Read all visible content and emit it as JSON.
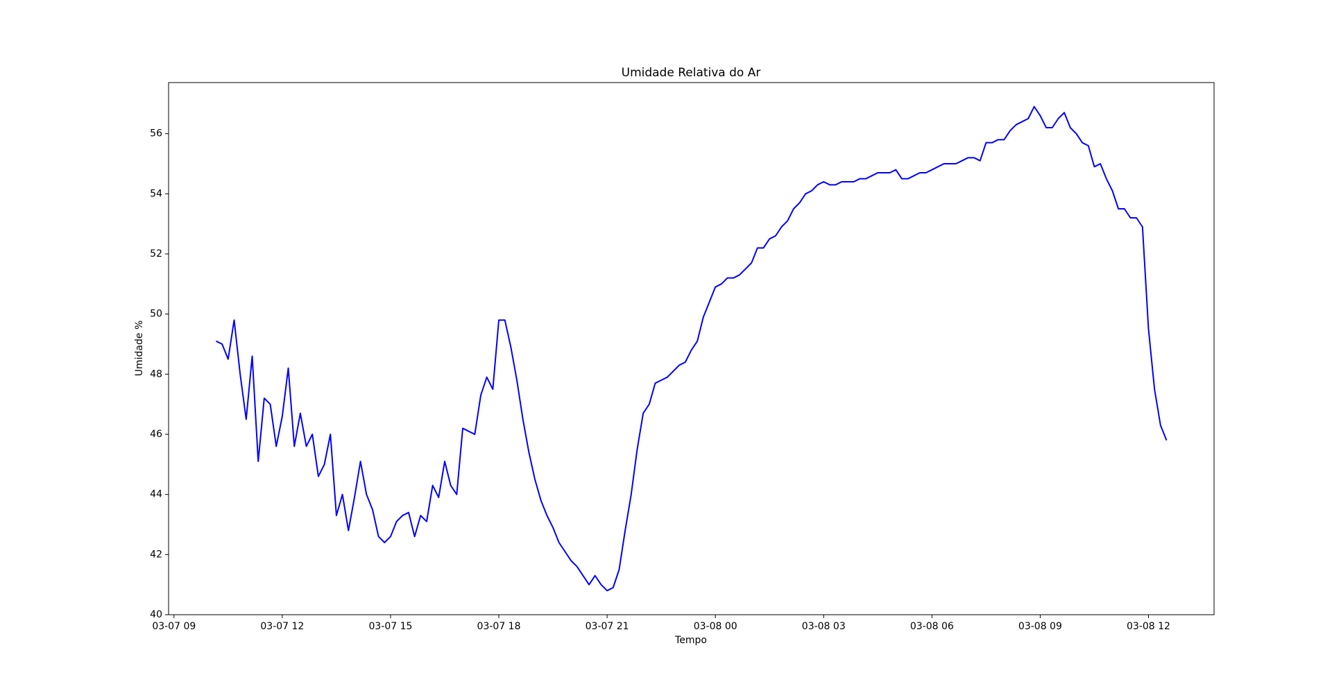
{
  "chart_data": {
    "type": "line",
    "title": "Umidade Relativa do Ar",
    "x_label": "Tempo",
    "y_label": "Umidade %",
    "color": "#0000ff",
    "x": [
      "03-07 10:10",
      "03-07 10:20",
      "03-07 10:30",
      "03-07 10:40",
      "03-07 10:50",
      "03-07 11:00",
      "03-07 11:10",
      "03-07 11:20",
      "03-07 11:30",
      "03-07 11:40",
      "03-07 11:50",
      "03-07 12:00",
      "03-07 12:10",
      "03-07 12:20",
      "03-07 12:30",
      "03-07 12:40",
      "03-07 12:50",
      "03-07 13:00",
      "03-07 13:10",
      "03-07 13:20",
      "03-07 13:30",
      "03-07 13:40",
      "03-07 13:50",
      "03-07 14:00",
      "03-07 14:10",
      "03-07 14:20",
      "03-07 14:30",
      "03-07 14:40",
      "03-07 14:50",
      "03-07 15:00",
      "03-07 15:10",
      "03-07 15:20",
      "03-07 15:30",
      "03-07 15:40",
      "03-07 15:50",
      "03-07 16:00",
      "03-07 16:10",
      "03-07 16:20",
      "03-07 16:30",
      "03-07 16:40",
      "03-07 16:50",
      "03-07 17:00",
      "03-07 17:10",
      "03-07 17:20",
      "03-07 17:30",
      "03-07 17:40",
      "03-07 17:50",
      "03-07 18:00",
      "03-07 18:10",
      "03-07 18:20",
      "03-07 18:30",
      "03-07 18:40",
      "03-07 18:50",
      "03-07 19:00",
      "03-07 19:10",
      "03-07 19:20",
      "03-07 19:30",
      "03-07 19:40",
      "03-07 19:50",
      "03-07 20:00",
      "03-07 20:10",
      "03-07 20:20",
      "03-07 20:30",
      "03-07 20:40",
      "03-07 20:50",
      "03-07 21:00",
      "03-07 21:10",
      "03-07 21:20",
      "03-07 21:30",
      "03-07 21:40",
      "03-07 21:50",
      "03-07 22:00",
      "03-07 22:10",
      "03-07 22:20",
      "03-07 22:30",
      "03-07 22:40",
      "03-07 22:50",
      "03-07 23:00",
      "03-07 23:10",
      "03-07 23:20",
      "03-07 23:30",
      "03-07 23:40",
      "03-07 23:50",
      "03-08 00:00",
      "03-08 00:10",
      "03-08 00:20",
      "03-08 00:30",
      "03-08 00:40",
      "03-08 00:50",
      "03-08 01:00",
      "03-08 01:10",
      "03-08 01:20",
      "03-08 01:30",
      "03-08 01:40",
      "03-08 01:50",
      "03-08 02:00",
      "03-08 02:10",
      "03-08 02:20",
      "03-08 02:30",
      "03-08 02:40",
      "03-08 02:50",
      "03-08 03:00",
      "03-08 03:10",
      "03-08 03:20",
      "03-08 03:30",
      "03-08 03:40",
      "03-08 03:50",
      "03-08 04:00",
      "03-08 04:10",
      "03-08 04:20",
      "03-08 04:30",
      "03-08 04:40",
      "03-08 04:50",
      "03-08 05:00",
      "03-08 05:10",
      "03-08 05:20",
      "03-08 05:30",
      "03-08 05:40",
      "03-08 05:50",
      "03-08 06:00",
      "03-08 06:10",
      "03-08 06:20",
      "03-08 06:30",
      "03-08 06:40",
      "03-08 06:50",
      "03-08 07:00",
      "03-08 07:10",
      "03-08 07:20",
      "03-08 07:30",
      "03-08 07:40",
      "03-08 07:50",
      "03-08 08:00",
      "03-08 08:10",
      "03-08 08:20",
      "03-08 08:30",
      "03-08 08:40",
      "03-08 08:50",
      "03-08 09:00",
      "03-08 09:10",
      "03-08 09:20",
      "03-08 09:30",
      "03-08 09:40",
      "03-08 09:50",
      "03-08 10:00",
      "03-08 10:10",
      "03-08 10:20",
      "03-08 10:30",
      "03-08 10:40",
      "03-08 10:50",
      "03-08 11:00",
      "03-08 11:10",
      "03-08 11:20",
      "03-08 11:30",
      "03-08 11:40",
      "03-08 11:50",
      "03-08 12:00",
      "03-08 12:10",
      "03-08 12:20",
      "03-08 12:30"
    ],
    "values": [
      49.1,
      49.0,
      48.5,
      49.8,
      48.0,
      46.5,
      48.6,
      45.1,
      47.2,
      47.0,
      45.6,
      46.6,
      48.2,
      45.6,
      46.7,
      45.6,
      46.0,
      44.6,
      45.0,
      46.0,
      43.3,
      44.0,
      42.8,
      43.9,
      45.1,
      44.0,
      43.5,
      42.6,
      42.4,
      42.6,
      43.1,
      43.3,
      43.4,
      42.6,
      43.3,
      43.1,
      44.3,
      43.9,
      45.1,
      44.3,
      44.0,
      46.2,
      46.1,
      46.0,
      47.3,
      47.9,
      47.5,
      49.8,
      49.8,
      48.9,
      47.8,
      46.5,
      45.4,
      44.5,
      43.8,
      43.3,
      42.9,
      42.4,
      42.1,
      41.8,
      41.6,
      41.3,
      41.0,
      41.3,
      41.0,
      40.8,
      40.9,
      41.5,
      42.8,
      44.0,
      45.5,
      46.7,
      47.0,
      47.7,
      47.8,
      47.9,
      48.1,
      48.3,
      48.4,
      48.8,
      49.1,
      49.9,
      50.4,
      50.9,
      51.0,
      51.2,
      51.2,
      51.3,
      51.5,
      51.7,
      52.2,
      52.2,
      52.5,
      52.6,
      52.9,
      53.1,
      53.5,
      53.7,
      54.0,
      54.1,
      54.3,
      54.4,
      54.3,
      54.3,
      54.4,
      54.4,
      54.4,
      54.5,
      54.5,
      54.6,
      54.7,
      54.7,
      54.7,
      54.8,
      54.5,
      54.5,
      54.6,
      54.7,
      54.7,
      54.8,
      54.9,
      55.0,
      55.0,
      55.0,
      55.1,
      55.2,
      55.2,
      55.1,
      55.7,
      55.7,
      55.8,
      55.8,
      56.1,
      56.3,
      56.4,
      56.5,
      56.9,
      56.6,
      56.2,
      56.2,
      56.5,
      56.7,
      56.2,
      56.0,
      55.7,
      55.6,
      54.9,
      55.0,
      54.5,
      54.1,
      53.5,
      53.5,
      53.2,
      53.2,
      52.9,
      49.5,
      47.5,
      46.3,
      45.8
    ],
    "xlim": [
      "03-07 08:51",
      "03-08 13:49"
    ],
    "xticks": [
      "03-07 09",
      "03-07 12",
      "03-07 15",
      "03-07 18",
      "03-07 21",
      "03-08 00",
      "03-08 03",
      "03-08 06",
      "03-08 09",
      "03-08 12"
    ],
    "ylim": [
      40,
      57.7
    ],
    "yticks": [
      40,
      42,
      44,
      46,
      48,
      50,
      52,
      54,
      56
    ],
    "grid": false
  }
}
